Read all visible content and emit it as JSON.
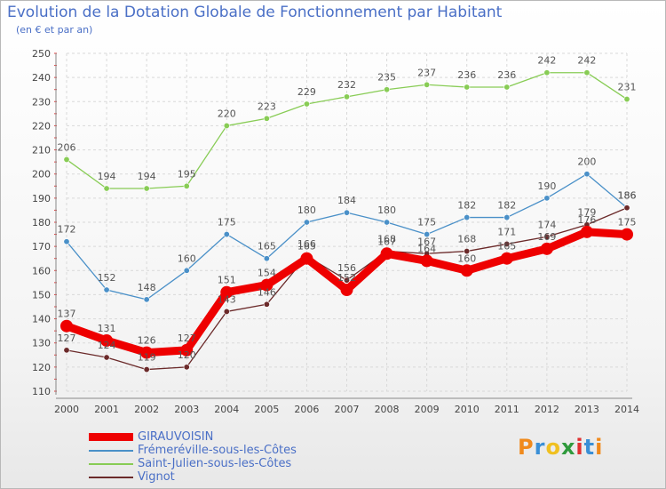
{
  "title": "Evolution de la Dotation Globale de Fonctionnement par Habitant",
  "subtitle": "(en € et par an)",
  "logo": {
    "text": "Proxiti",
    "letters": [
      "P",
      "r",
      "o",
      "x",
      "i",
      "t",
      "i"
    ],
    "colors": [
      "#f08a1c",
      "#3a8fd6",
      "#f0c020",
      "#2f9a3c",
      "#e03030",
      "#3a8fd6",
      "#f08a1c"
    ]
  },
  "chart_data": {
    "type": "line",
    "title": "Evolution de la Dotation Globale de Fonctionnement par Habitant",
    "ylabel": "(en € et par an)",
    "xlabel": "",
    "ylim": [
      110,
      250
    ],
    "y_ticks": [
      110,
      120,
      130,
      140,
      150,
      160,
      170,
      180,
      190,
      200,
      210,
      220,
      230,
      240,
      250
    ],
    "categories": [
      "2000",
      "2001",
      "2002",
      "2003",
      "2004",
      "2005",
      "2006",
      "2007",
      "2008",
      "2009",
      "2010",
      "2011",
      "2012",
      "2013",
      "2014"
    ],
    "series": [
      {
        "name": "GIRAUVOISIN",
        "color": "#ee0000",
        "values": [
          137,
          131,
          126,
          127,
          151,
          154,
          165,
          152,
          167,
          164,
          160,
          165,
          169,
          176,
          175
        ]
      },
      {
        "name": "Frémeréville-sous-les-Côtes",
        "color": "#4a90c8",
        "values": [
          172,
          152,
          148,
          160,
          175,
          165,
          180,
          184,
          180,
          175,
          182,
          182,
          190,
          200,
          186
        ]
      },
      {
        "name": "Saint-Julien-sous-les-Côtes",
        "color": "#88cc55",
        "values": [
          206,
          194,
          194,
          195,
          220,
          223,
          229,
          232,
          235,
          237,
          236,
          236,
          242,
          242,
          231
        ]
      },
      {
        "name": "Vignot",
        "color": "#6b2a2a",
        "values": [
          127,
          124,
          119,
          120,
          143,
          146,
          166,
          156,
          168,
          167,
          168,
          171,
          174,
          179,
          186
        ]
      }
    ],
    "grid": true,
    "legend": "bottom-left"
  }
}
